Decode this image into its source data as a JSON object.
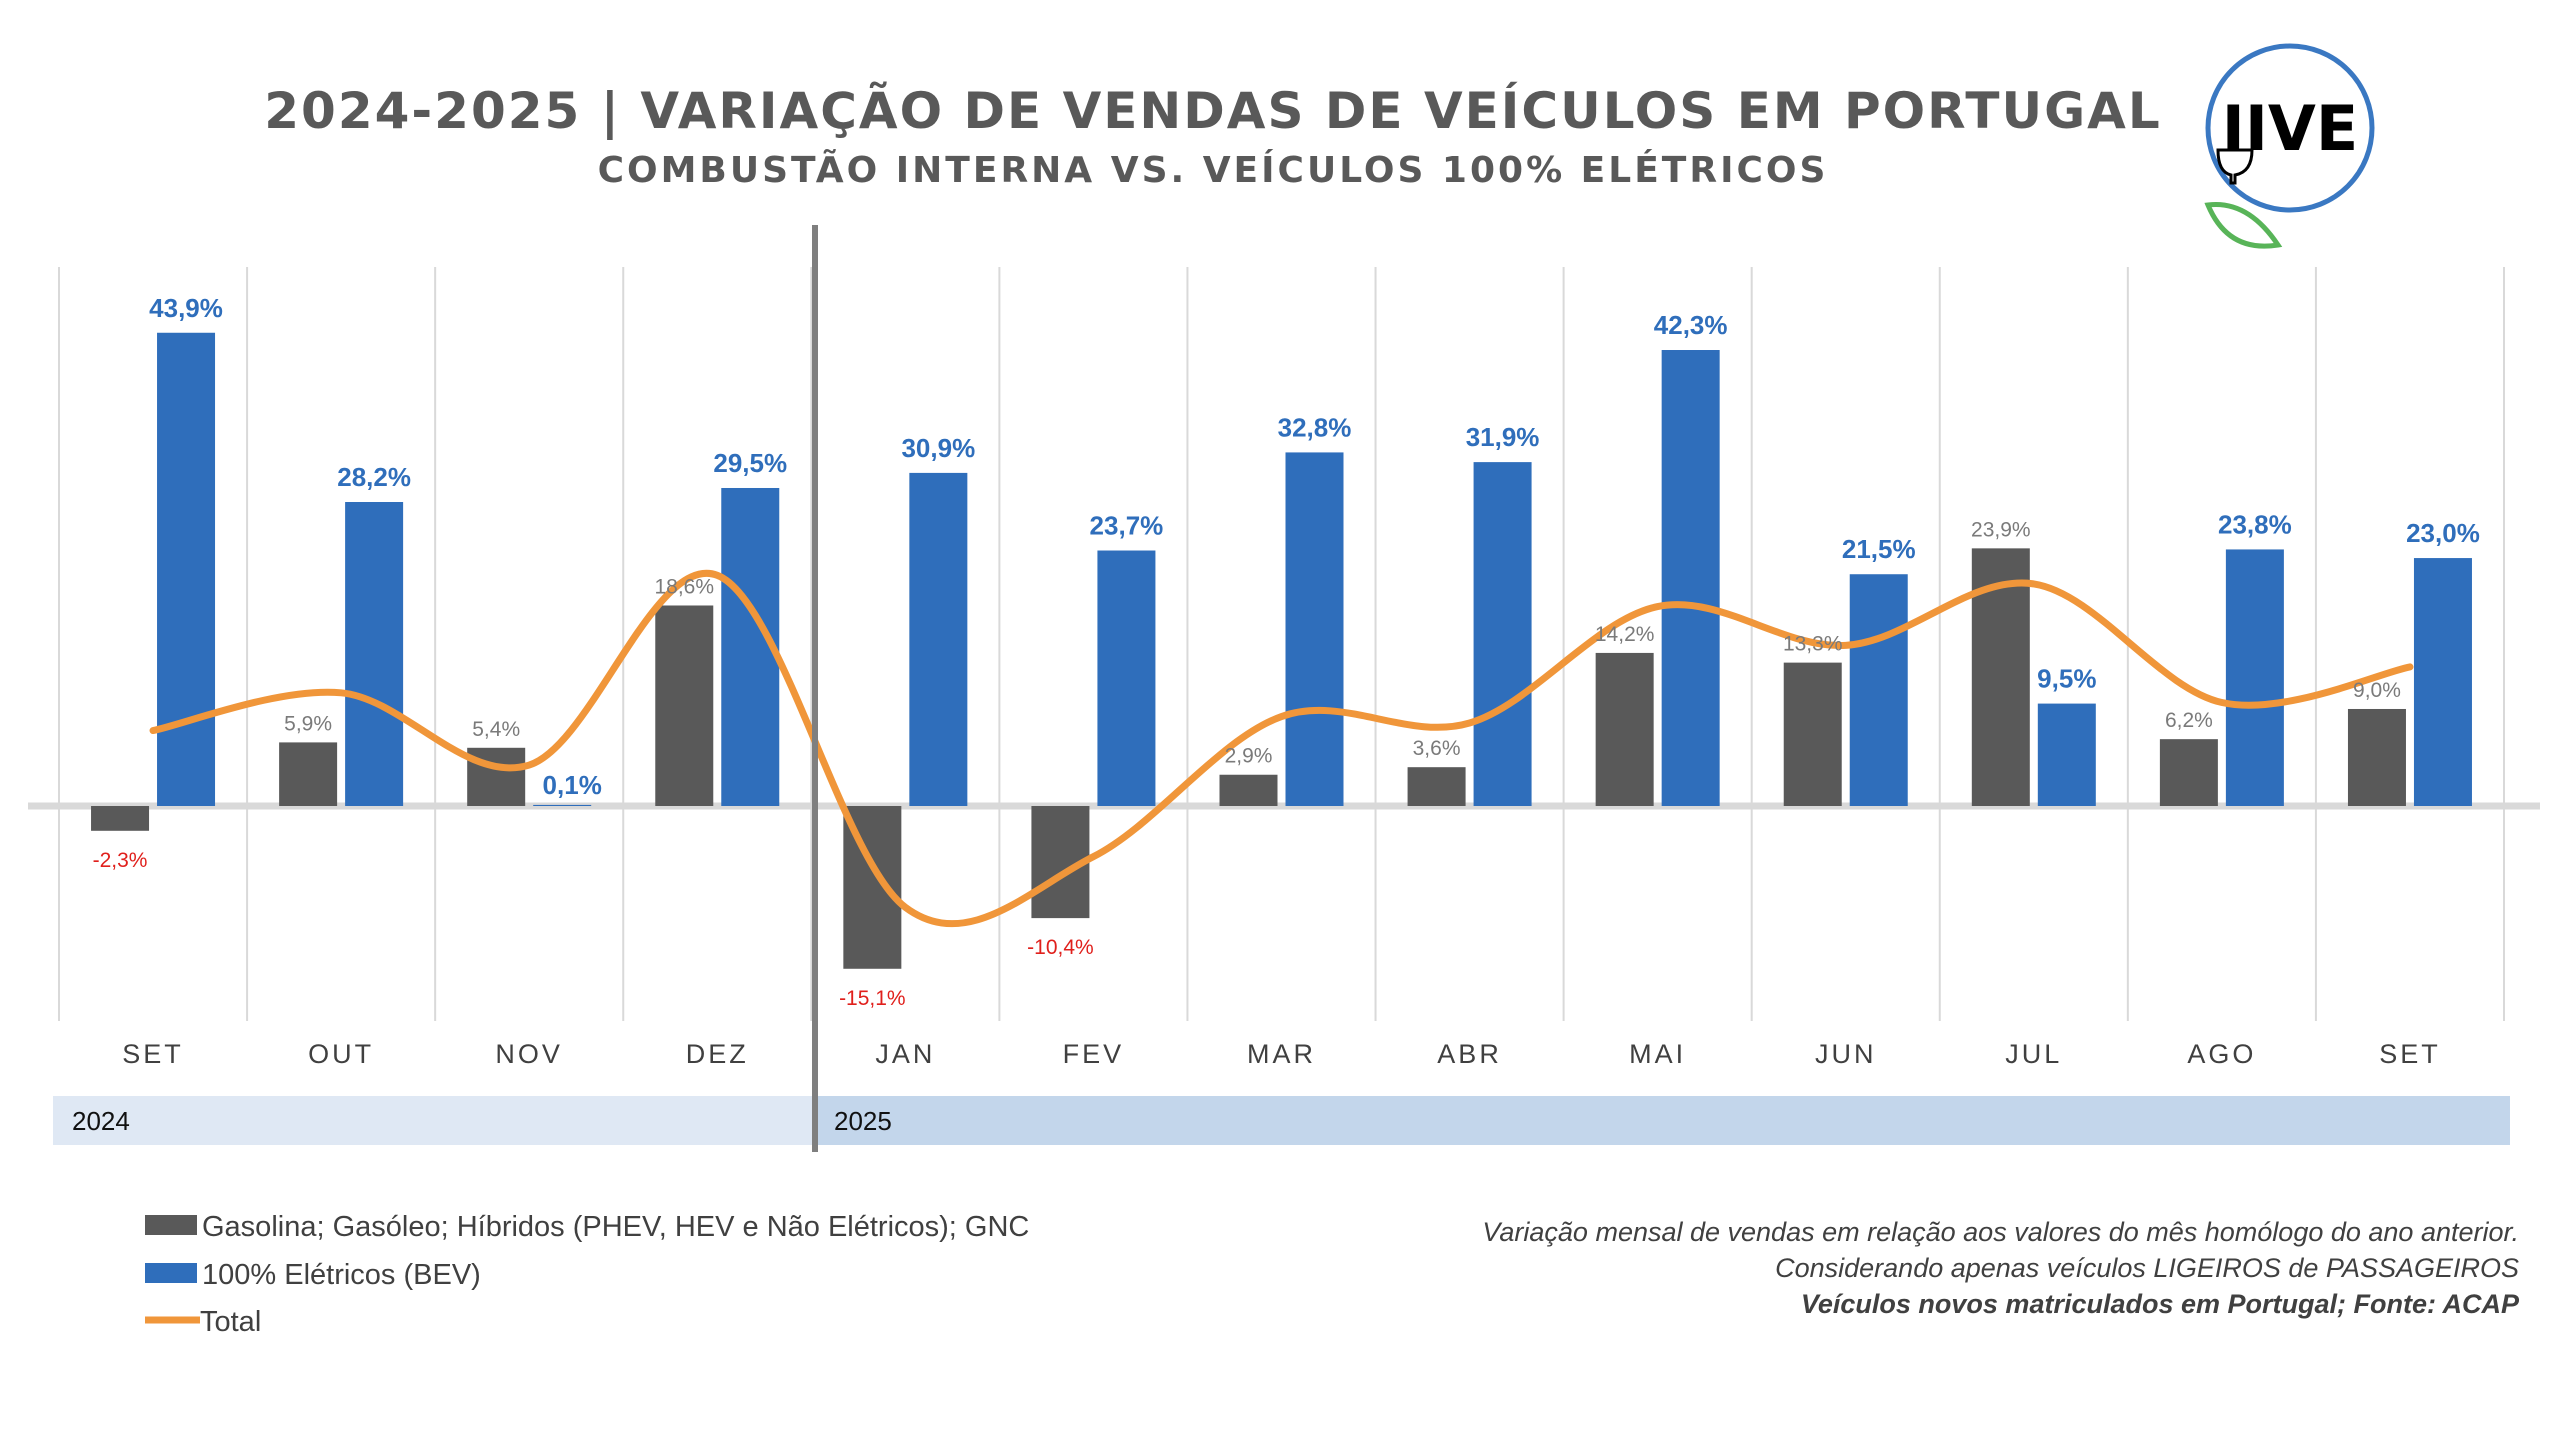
{
  "title": "2024-2025 | VARIAÇÃO DE VENDAS DE VEÍCULOS EM PORTUGAL",
  "subtitle": "COMBUSTÃO INTERNA VS. VEÍCULOS 100% ELÉTRICOS",
  "logo": {
    "text": "IIVE"
  },
  "years": [
    "2024",
    "2025"
  ],
  "legend": [
    {
      "label": "Gasolina; Gasóleo; Híbridos (PHEV, HEV e Não Elétricos); GNC",
      "color": "#595959"
    },
    {
      "label": "100% Elétricos (BEV)",
      "color": "#2f6ebb"
    },
    {
      "label": "Total",
      "color": "#f0963a"
    }
  ],
  "notes": [
    "Variação mensal de vendas em relação aos valores do mês homólogo do ano anterior.",
    "Considerando apenas veículos LIGEIROS de PASSAGEIROS",
    "Veículos novos matriculados em Portugal; Fonte: ACAP"
  ],
  "chart_data": {
    "type": "bar",
    "title": "2024-2025 | VARIAÇÃO DE VENDAS DE VEÍCULOS EM PORTUGAL",
    "categories": [
      "SET",
      "OUT",
      "NOV",
      "DEZ",
      "JAN",
      "FEV",
      "MAR",
      "ABR",
      "MAI",
      "JUN",
      "JUL",
      "AGO",
      "SET"
    ],
    "category_years": [
      "2024",
      "2024",
      "2024",
      "2024",
      "2025",
      "2025",
      "2025",
      "2025",
      "2025",
      "2025",
      "2025",
      "2025",
      "2025"
    ],
    "ylim": [
      -20,
      50
    ],
    "grid": "vertical",
    "legend_position": "bottom-left",
    "series": [
      {
        "name": "Gasolina; Gasóleo; Híbridos (PHEV, HEV e Não Elétricos); GNC",
        "type": "bar",
        "values": [
          -2.3,
          5.9,
          5.4,
          18.6,
          -15.1,
          -10.4,
          2.9,
          3.6,
          14.2,
          13.3,
          23.9,
          6.2,
          9.0
        ],
        "labels": [
          "-2,3%",
          "5,9%",
          "5,4%",
          "18,6%",
          "-15,1%",
          "-10,4%",
          "2,9%",
          "3,6%",
          "14,2%",
          "13,3%",
          "23,9%",
          "6,2%",
          "9,0%"
        ]
      },
      {
        "name": "100% Elétricos (BEV)",
        "type": "bar",
        "values": [
          43.9,
          28.2,
          0.1,
          29.5,
          30.9,
          23.7,
          32.8,
          31.9,
          42.3,
          21.5,
          9.5,
          23.8,
          23.0
        ],
        "labels": [
          "43,9%",
          "28,2%",
          "0,1%",
          "29,5%",
          "30,9%",
          "23,7%",
          "32,8%",
          "31,9%",
          "42,3%",
          "21,5%",
          "9,5%",
          "23,8%",
          "23,0%"
        ]
      },
      {
        "name": "Total",
        "type": "line",
        "values": [
          7.0,
          10.5,
          3.8,
          21.4,
          -9.4,
          -4.7,
          8.3,
          7.7,
          18.5,
          14.9,
          20.6,
          9.6,
          12.9
        ]
      }
    ]
  }
}
